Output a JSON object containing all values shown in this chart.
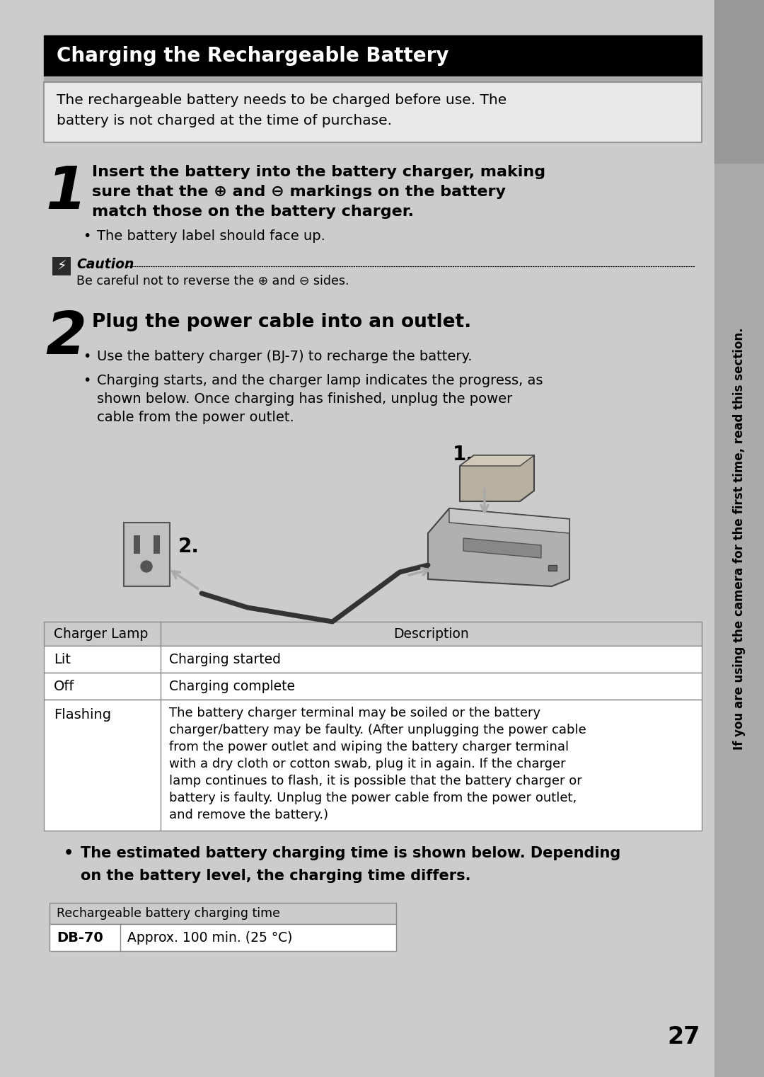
{
  "title": "Charging the Rechargeable Battery",
  "title_bg": "#000000",
  "title_fg": "#ffffff",
  "page_bg": "#cccccc",
  "intro_bg": "#e8e8e8",
  "white": "#ffffff",
  "intro_text_line1": "The rechargeable battery needs to be charged before use. The",
  "intro_text_line2": "battery is not charged at the time of purchase.",
  "step1_num": "1",
  "step1_bold_line1": "Insert the battery into the battery charger, making",
  "step1_bold_line2": "sure that the ⊕ and ⊖ markings on the battery",
  "step1_bold_line3": "match those on the battery charger.",
  "step1_bullet": "The battery label should face up.",
  "caution_label": "Caution",
  "caution_text": "Be careful not to reverse the ⊕ and ⊖ sides.",
  "step2_num": "2",
  "step2_bold": "Plug the power cable into an outlet.",
  "step2_bullet1": "Use the battery charger (BJ-7) to recharge the battery.",
  "step2_bullet2_line1": "Charging starts, and the charger lamp indicates the progress, as",
  "step2_bullet2_line2": "shown below. Once charging has finished, unplug the power",
  "step2_bullet2_line3": "cable from the power outlet.",
  "label_1": "1.",
  "label_2": "2.",
  "table1_col1_header": "Charger Lamp",
  "table1_col2_header": "Description",
  "table1_r1c1": "Lit",
  "table1_r1c2": "Charging started",
  "table1_r2c1": "Off",
  "table1_r2c2": "Charging complete",
  "table1_r3c1": "Flashing",
  "table1_r3c2_line1": "The battery charger terminal may be soiled or the battery",
  "table1_r3c2_line2": "charger/battery may be faulty. (After unplugging the power cable",
  "table1_r3c2_line3": "from the power outlet and wiping the battery charger terminal",
  "table1_r3c2_line4": "with a dry cloth or cotton swab, plug it in again. If the charger",
  "table1_r3c2_line5": "lamp continues to flash, it is possible that the battery charger or",
  "table1_r3c2_line6": "battery is faulty. Unplug the power cable from the power outlet,",
  "table1_r3c2_line7": "and remove the battery.)",
  "bullet_bold_line1": "The estimated battery charging time is shown below. Depending",
  "bullet_bold_line2": "on the battery level, the charging time differs.",
  "table2_header": "Rechargeable battery charging time",
  "table2_r1c1": "DB-70",
  "table2_r1c2": "Approx. 100 min. (25 °C)",
  "page_number": "27",
  "sidebar_text": "If you are using the camera for the first time, read this section.",
  "sidebar_bg": "#aaaaaa",
  "table_border": "#888888",
  "table_header_bg": "#cccccc"
}
